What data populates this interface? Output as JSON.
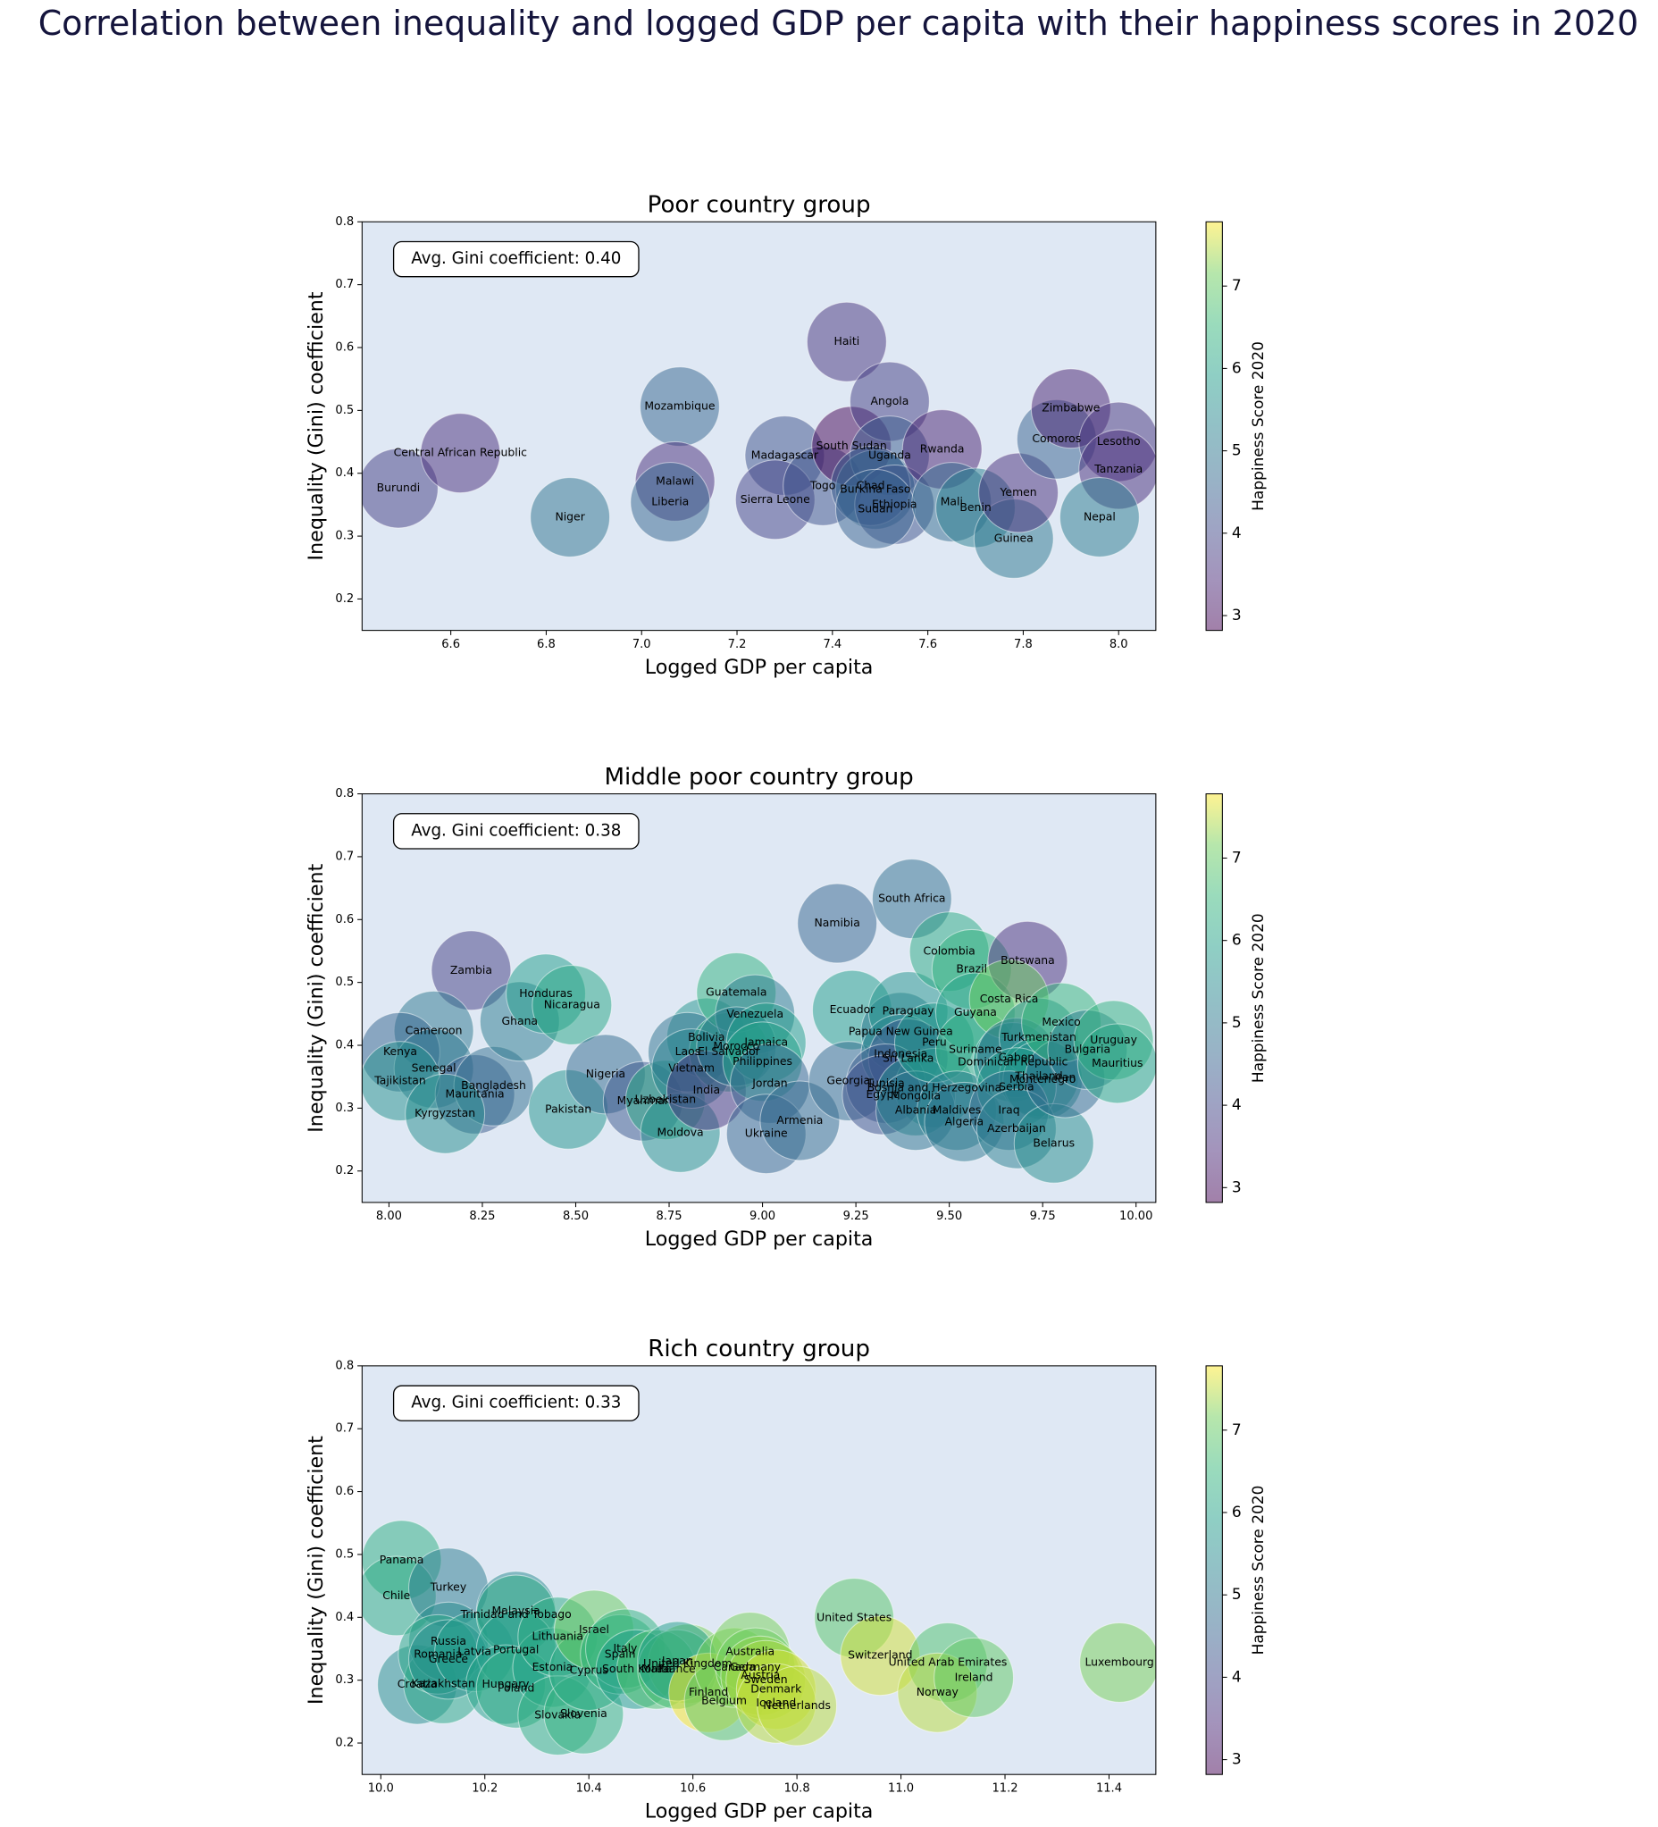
{
  "title": "Correlation between inequality and logged GDP per capita with their happiness scores in 2020",
  "chart_data": [
    {
      "type": "scatter",
      "title": "Poor country group",
      "xlabel": "Logged GDP per capita",
      "ylabel": "Inequality (Gini) coefficient",
      "annotation": "Avg. Gini coefficient: 0.40",
      "colorbar_label": "Happiness Score 2020",
      "colormap": "viridis",
      "background": "#dfe8f4",
      "xlim": [
        6.414,
        8.078
      ],
      "ylim": [
        0.15,
        0.8
      ],
      "xticks": [
        6.6,
        6.8,
        {
          "value": 7,
          "label": "7.0"
        },
        7.2,
        7.4,
        7.6,
        7.8,
        {
          "value": 8,
          "label": "8.0"
        }
      ],
      "yticks": [
        0.2,
        0.3,
        0.4,
        0.5,
        0.6,
        0.7,
        0.8
      ],
      "clim": [
        2.82,
        7.78
      ],
      "cticks": [
        3,
        4,
        5,
        6,
        7
      ],
      "labels": [
        "Burundi",
        "Central African Republic",
        "Niger",
        "Mozambique",
        "Malawi",
        "Liberia",
        "Madagascar",
        "Sierra Leone",
        "Togo",
        "Haiti",
        "South Sudan",
        "Angola",
        "Uganda",
        "Burkina Faso",
        "Chad",
        "Ethiopia",
        "Sudan",
        "Rwanda",
        "Mali",
        "Benin",
        "Guinea",
        "Yemen",
        "Comoros",
        "Zimbabwe",
        "Lesotho",
        "Tanzania",
        "Nepal"
      ],
      "x": [
        6.49,
        6.62,
        6.85,
        7.08,
        7.07,
        7.06,
        7.3,
        7.28,
        7.38,
        7.43,
        7.44,
        7.52,
        7.52,
        7.49,
        7.48,
        7.53,
        7.49,
        7.63,
        7.65,
        7.7,
        7.78,
        7.79,
        7.87,
        7.9,
        8.0,
        8.0,
        7.96
      ],
      "y": [
        0.376,
        0.432,
        0.33,
        0.506,
        0.387,
        0.354,
        0.428,
        0.358,
        0.38,
        0.609,
        0.443,
        0.514,
        0.428,
        0.374,
        0.38,
        0.35,
        0.343,
        0.438,
        0.354,
        0.345,
        0.296,
        0.369,
        0.454,
        0.503,
        0.45,
        0.406,
        0.33
      ],
      "happiness": [
        3.8,
        3.5,
        4.9,
        4.6,
        3.5,
        4.6,
        4.2,
        3.9,
        4.2,
        3.6,
        2.8,
        3.8,
        4.4,
        4.8,
        4.4,
        4.2,
        4.5,
        3.3,
        4.7,
        5.2,
        5.0,
        3.5,
        4.5,
        3.3,
        3.6,
        3.5,
        5.1
      ]
    },
    {
      "type": "scatter",
      "title": "Middle poor country group",
      "xlabel": "Logged GDP per capita",
      "ylabel": "Inequality (Gini) coefficient",
      "annotation": "Avg. Gini coefficient: 0.38",
      "colorbar_label": "Happiness Score 2020",
      "colormap": "viridis",
      "background": "#dfe8f4",
      "xlim": [
        7.928,
        10.053
      ],
      "ylim": [
        0.15,
        0.8
      ],
      "xticks": [
        {
          "value": 8,
          "label": "8.00"
        },
        8.25,
        {
          "value": 8.5,
          "label": "8.50"
        },
        8.75,
        {
          "value": 9,
          "label": "9.00"
        },
        9.25,
        {
          "value": 9.5,
          "label": "9.50"
        },
        9.75,
        {
          "value": 10,
          "label": "10.00"
        }
      ],
      "yticks": [
        0.2,
        0.3,
        0.4,
        0.5,
        0.6,
        0.7,
        0.8
      ],
      "clim": [
        2.82,
        7.78
      ],
      "cticks": [
        3,
        4,
        5,
        6,
        7
      ],
      "labels": [
        "Zambia",
        "Cameroon",
        "Kenya",
        "Senegal",
        "Tajikistan",
        "Mauritania",
        "Bangladesh",
        "Kyrgyzstan",
        "Ghana",
        "Honduras",
        "Nicaragua",
        "Pakistan",
        "Nigeria",
        "Myanmar",
        "Uzbekistan",
        "Moldova",
        "Bolivia",
        "Laos",
        "El Salvador",
        "Vietnam",
        "India",
        "Guatemala",
        "Venezuela",
        "Morocco",
        "Jamaica",
        "Philippines",
        "Jordan",
        "Ukraine",
        "Armenia",
        "Namibia",
        "South Africa",
        "Ecuador",
        "Georgia",
        "Papua New Guinea",
        "Paraguay",
        "Indonesia",
        "Sri Lanka",
        "Tunisia",
        "Bosnia and Herzegovina",
        "Egypt",
        "Mongolia",
        "Albania",
        "Peru",
        "Colombia",
        "Brazil",
        "Guyana",
        "Suriname",
        "Maldives",
        "Algeria",
        "Botswana",
        "Costa Rica",
        "Dominican Republic",
        "Gabon",
        "Turkmenistan",
        "Thailand",
        "Montenegro",
        "Serbia",
        "Iraq",
        "Azerbaijan",
        "Belarus",
        "Iran",
        "Mexico",
        "Bulgaria",
        "Uruguay",
        "Mauritius"
      ],
      "x": [
        8.22,
        8.12,
        8.03,
        8.12,
        8.03,
        8.23,
        8.28,
        8.15,
        8.35,
        8.42,
        8.49,
        8.48,
        8.58,
        8.68,
        8.74,
        8.78,
        8.85,
        8.8,
        8.91,
        8.81,
        8.85,
        8.93,
        8.98,
        8.93,
        9.01,
        9.0,
        9.02,
        9.01,
        9.1,
        9.2,
        9.4,
        9.24,
        9.23,
        9.37,
        9.39,
        9.37,
        9.39,
        9.33,
        9.46,
        9.32,
        9.41,
        9.41,
        9.46,
        9.5,
        9.56,
        9.57,
        9.57,
        9.52,
        9.54,
        9.71,
        9.66,
        9.67,
        9.68,
        9.74,
        9.74,
        9.75,
        9.68,
        9.66,
        9.68,
        9.78,
        9.81,
        9.8,
        9.87,
        9.94,
        9.95
      ],
      "y": [
        0.519,
        0.423,
        0.389,
        0.363,
        0.343,
        0.322,
        0.335,
        0.291,
        0.438,
        0.482,
        0.464,
        0.298,
        0.354,
        0.311,
        0.313,
        0.261,
        0.412,
        0.389,
        0.389,
        0.363,
        0.328,
        0.484,
        0.449,
        0.398,
        0.404,
        0.374,
        0.339,
        0.259,
        0.28,
        0.594,
        0.633,
        0.456,
        0.343,
        0.421,
        0.454,
        0.386,
        0.379,
        0.339,
        0.332,
        0.321,
        0.319,
        0.296,
        0.404,
        0.549,
        0.521,
        0.452,
        0.393,
        0.296,
        0.278,
        0.534,
        0.473,
        0.373,
        0.38,
        0.412,
        0.35,
        0.345,
        0.333,
        0.296,
        0.267,
        0.244,
        0.348,
        0.436,
        0.393,
        0.408,
        0.371
      ],
      "happiness": [
        3.8,
        5.0,
        4.6,
        5.0,
        5.6,
        4.4,
        4.8,
        5.5,
        5.1,
        5.9,
        6.1,
        5.7,
        4.7,
        4.3,
        6.2,
        5.6,
        5.7,
        4.9,
        6.3,
        5.3,
        3.6,
        6.4,
        5.1,
        5.1,
        5.9,
        6.0,
        4.6,
        4.6,
        4.7,
        4.6,
        4.8,
        5.9,
        4.7,
        5.0,
        5.7,
        5.3,
        4.3,
        4.4,
        5.7,
        4.2,
        5.5,
        4.9,
        5.8,
        6.2,
        6.4,
        6.0,
        6.3,
        5.2,
        5.0,
        3.5,
        7.1,
        5.7,
        4.9,
        5.5,
        5.9,
        5.5,
        5.8,
        4.8,
        5.2,
        5.5,
        4.7,
        6.5,
        5.1,
        6.4,
        6.1
      ]
    },
    {
      "type": "scatter",
      "title": "Rich country group",
      "xlabel": "Logged GDP per capita",
      "ylabel": "Inequality (Gini) coefficient",
      "annotation": "Avg. Gini coefficient: 0.33",
      "colorbar_label": "Happiness Score 2020",
      "colormap": "viridis",
      "background": "#dfe8f4",
      "xlim": [
        9.964,
        11.49
      ],
      "ylim": [
        0.15,
        0.8
      ],
      "xticks": [
        {
          "value": 10,
          "label": "10.0"
        },
        10.2,
        10.4,
        10.6,
        10.8,
        {
          "value": 11,
          "label": "11.0"
        },
        11.2,
        11.4
      ],
      "yticks": [
        0.2,
        0.3,
        0.4,
        0.5,
        0.6,
        0.7,
        0.8
      ],
      "clim": [
        2.82,
        7.78
      ],
      "cticks": [
        3,
        4,
        5,
        6,
        7
      ],
      "labels": [
        "Panama",
        "Chile",
        "Turkey",
        "Croatia",
        "Kazakhstan",
        "Russia",
        "Romania",
        "Greece",
        "Latvia",
        "Malaysia",
        "Trinidad and Tobago",
        "Portugal",
        "Hungary",
        "Poland",
        "Estonia",
        "Lithuania",
        "Slovakia",
        "Slovenia",
        "Cyprus",
        "Israel",
        "Spain",
        "Italy",
        "South Korea",
        "United Kingdom",
        "Malta",
        "France",
        "Japan",
        "Finland",
        "Belgium",
        "Canada",
        "Australia",
        "Germany",
        "Austria",
        "Sweden",
        "Denmark",
        "Iceland",
        "Netherlands",
        "United States",
        "Switzerland",
        "United Arab Emirates",
        "Norway",
        "Ireland",
        "Luxembourg"
      ],
      "x": [
        10.04,
        10.03,
        10.13,
        10.07,
        10.12,
        10.13,
        10.11,
        10.13,
        10.18,
        10.26,
        10.26,
        10.26,
        10.24,
        10.26,
        10.33,
        10.34,
        10.34,
        10.39,
        10.4,
        10.41,
        10.46,
        10.47,
        10.49,
        10.59,
        10.53,
        10.57,
        10.57,
        10.63,
        10.66,
        10.68,
        10.71,
        10.72,
        10.73,
        10.74,
        10.76,
        10.76,
        10.8,
        10.91,
        10.96,
        11.09,
        11.07,
        11.14,
        11.42
      ],
      "y": [
        0.491,
        0.434,
        0.447,
        0.293,
        0.294,
        0.361,
        0.341,
        0.333,
        0.345,
        0.41,
        0.404,
        0.348,
        0.293,
        0.287,
        0.32,
        0.369,
        0.244,
        0.246,
        0.315,
        0.38,
        0.341,
        0.35,
        0.317,
        0.326,
        0.317,
        0.317,
        0.33,
        0.28,
        0.267,
        0.32,
        0.345,
        0.32,
        0.307,
        0.3,
        0.285,
        0.263,
        0.259,
        0.399,
        0.339,
        0.328,
        0.28,
        0.304,
        0.328
      ],
      "happiness": [
        6.3,
        6.2,
        5.1,
        5.5,
        6.1,
        5.5,
        6.1,
        5.5,
        5.9,
        5.4,
        6.2,
        5.9,
        6.0,
        6.2,
        6.0,
        6.2,
        6.3,
        6.4,
        6.2,
        7.1,
        6.4,
        6.4,
        5.9,
        7.2,
        6.8,
        6.7,
        5.9,
        7.8,
        6.9,
        7.2,
        7.2,
        7.1,
        7.3,
        7.4,
        7.6,
        7.5,
        7.5,
        6.9,
        7.6,
        6.8,
        7.5,
        7.0,
        7.2
      ]
    }
  ]
}
